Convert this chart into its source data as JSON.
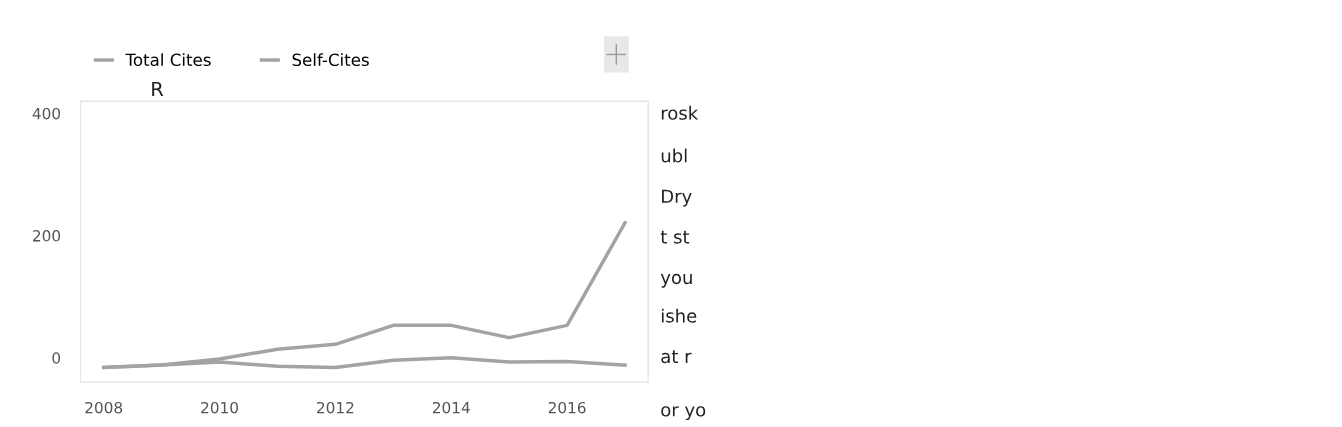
{
  "chart_data": {
    "type": "line",
    "x": [
      2008,
      2009,
      2010,
      2011,
      2012,
      2013,
      2014,
      2015,
      2016,
      2017
    ],
    "series": [
      {
        "name": "Total Cites",
        "color": "#a3a3a3",
        "values": [
          -16,
          -12,
          -2,
          14,
          22,
          53,
          53,
          33,
          53,
          221
        ]
      },
      {
        "name": "Self-Cites",
        "color": "#a3a3a3",
        "values": [
          -16,
          -12,
          -7,
          -14,
          -16,
          -4,
          0,
          -7,
          -6,
          -12
        ]
      }
    ],
    "xlim": [
      2007.6,
      2017.4
    ],
    "xticks": [
      2008,
      2010,
      2012,
      2014,
      2016
    ],
    "ylim": [
      -40,
      420
    ],
    "yticks": [
      0,
      200,
      400
    ],
    "grid": false,
    "legend": "top left",
    "marker": "none",
    "line_style": "solid",
    "annotations": [
      "R",
      "rosk",
      "ubl",
      "Dry",
      "t st",
      "you",
      "ishe",
      "at r",
      "or yo"
    ]
  }
}
